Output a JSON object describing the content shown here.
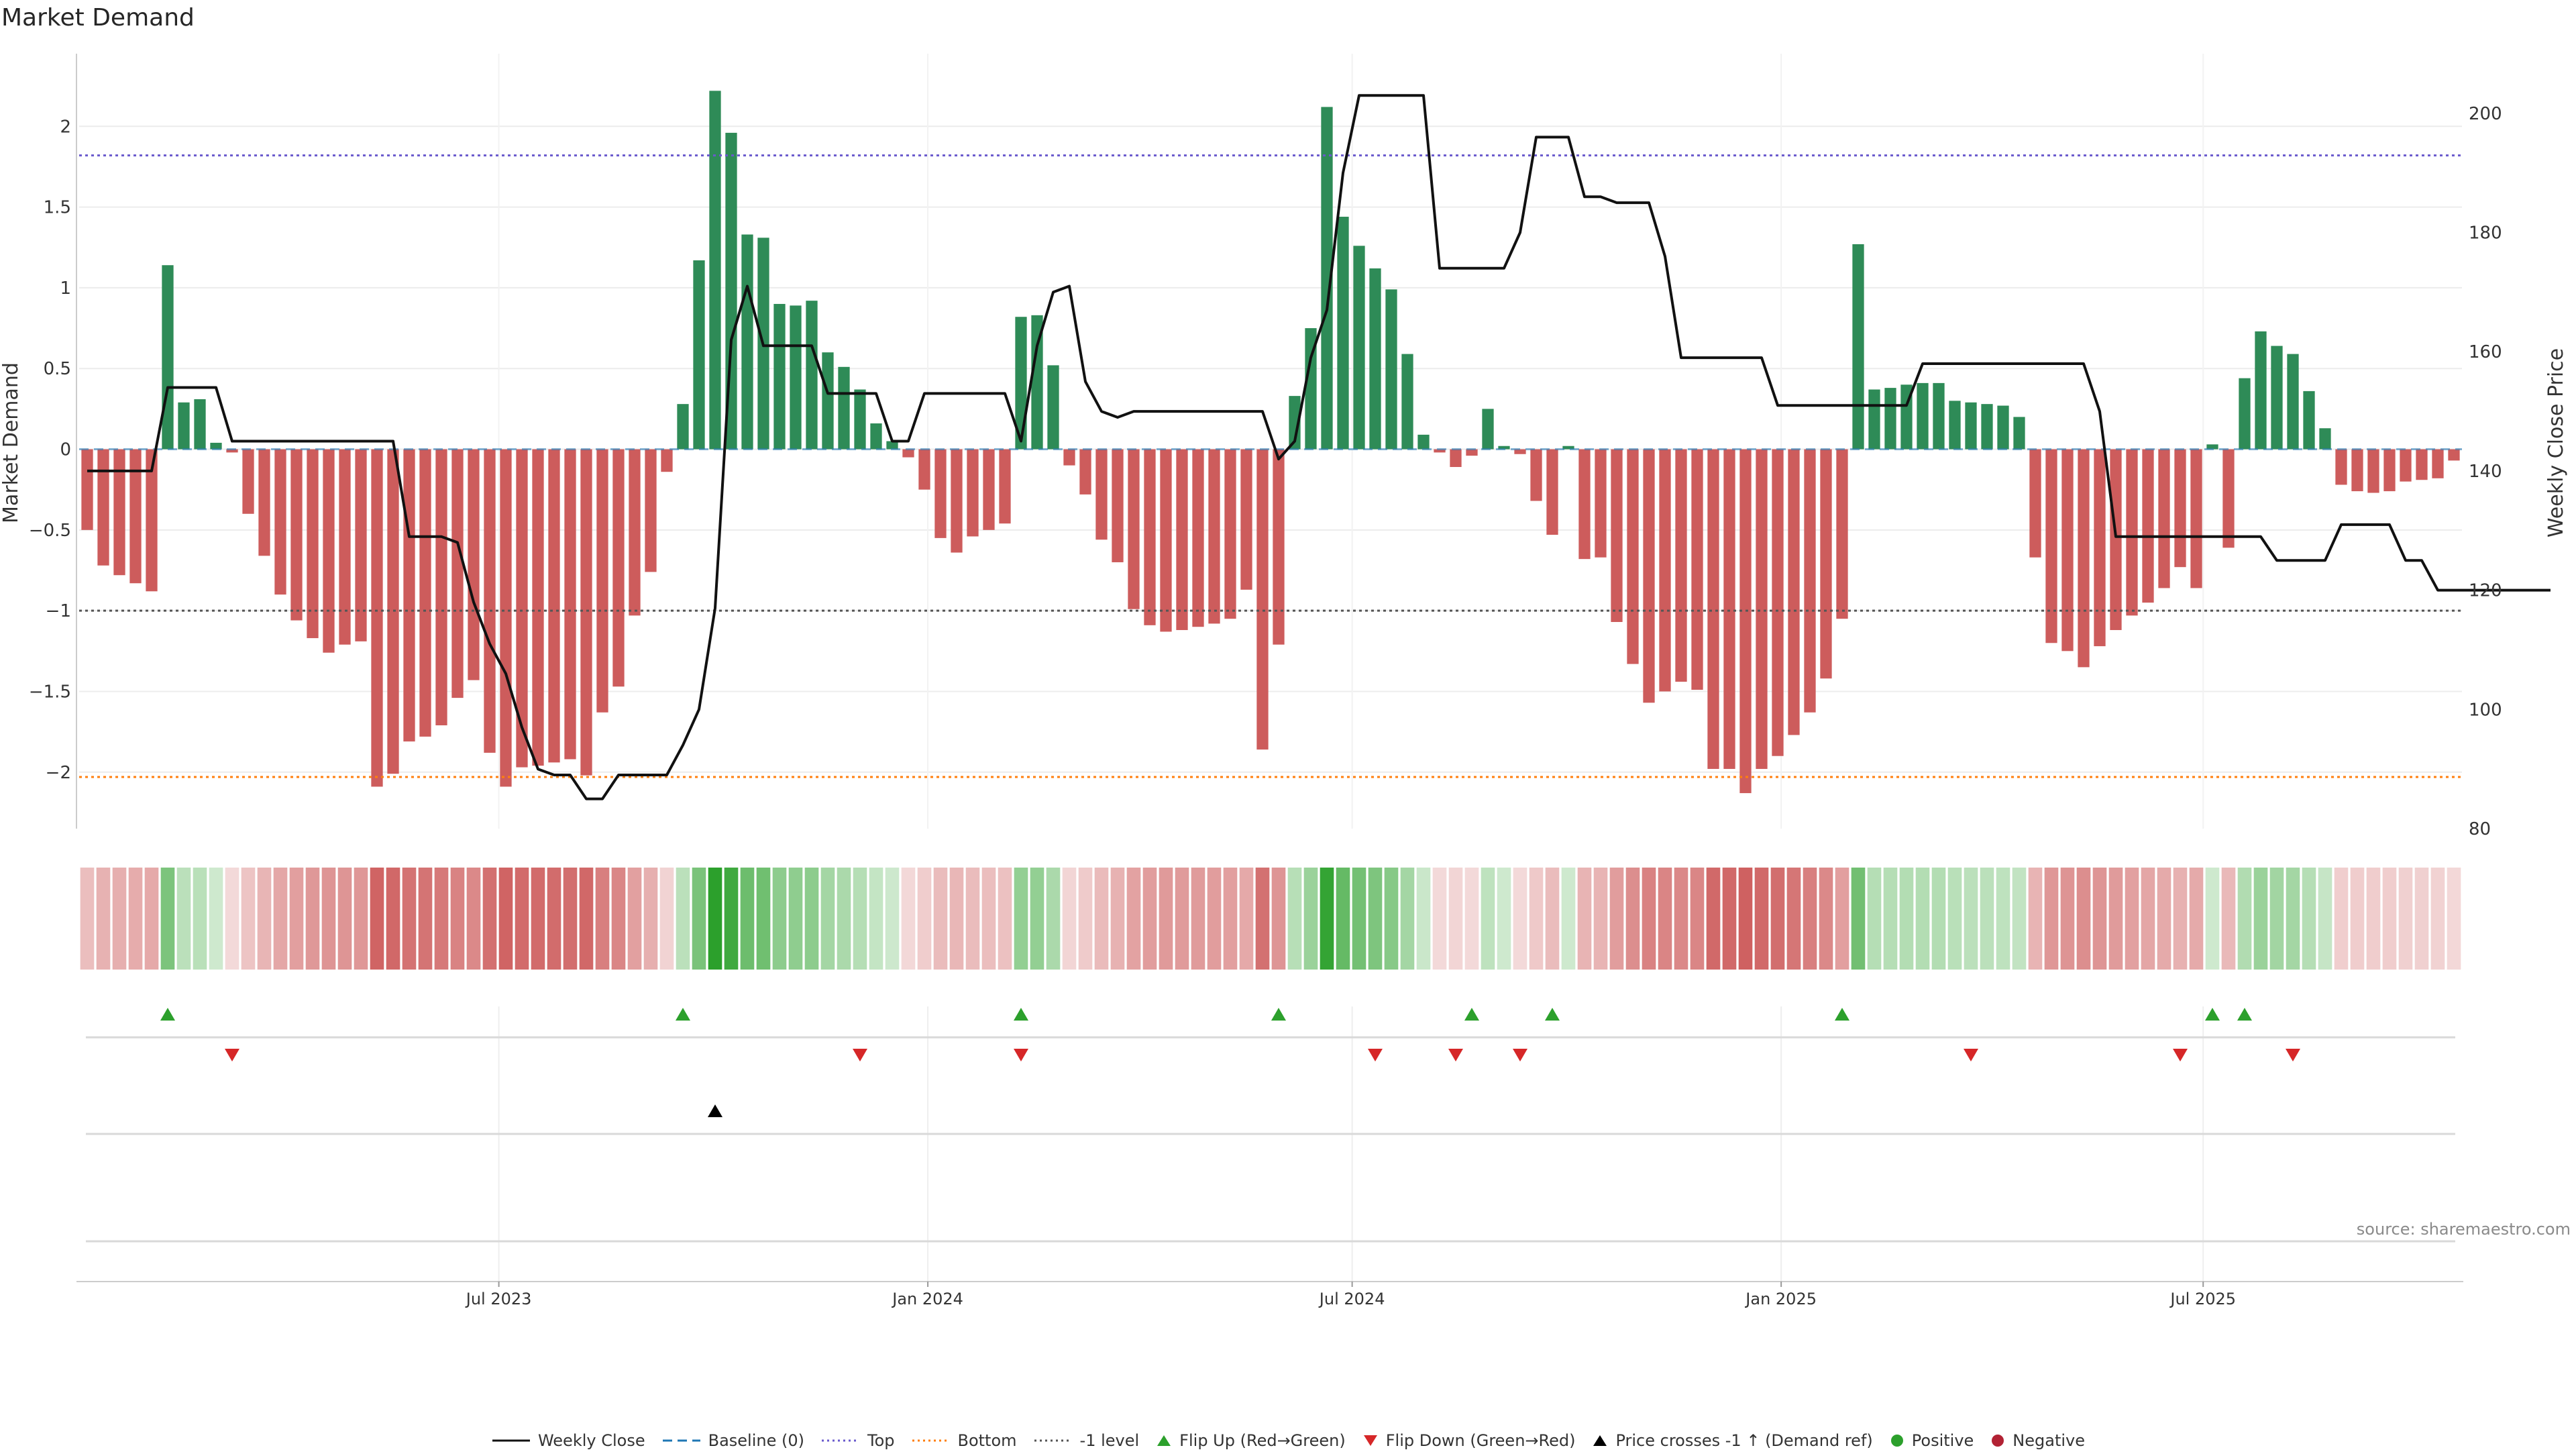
{
  "chart_data": {
    "type": "bar",
    "title": "Market Demand",
    "ylabel": "Market Demand",
    "ylabel_right": "Weekly Close Price",
    "ylim": [
      -2.35,
      2.45
    ],
    "yticks": [
      -2,
      -1.5,
      -1,
      -0.5,
      0,
      0.5,
      1,
      1.5,
      2
    ],
    "ylim_right": [
      80,
      210
    ],
    "yticks_right": [
      80,
      100,
      120,
      140,
      160,
      180,
      200
    ],
    "x_start": "2023-01-02",
    "x_end": "2025-10-20",
    "x_ticks": [
      {
        "date": "2023-07-01",
        "label": "Jul 2023"
      },
      {
        "date": "2024-01-01",
        "label": "Jan 2024"
      },
      {
        "date": "2024-07-01",
        "label": "Jul 2024"
      },
      {
        "date": "2025-01-01",
        "label": "Jan 2025"
      },
      {
        "date": "2025-07-01",
        "label": "Jul 2025"
      }
    ],
    "reference_lines": [
      {
        "name": "Top",
        "value": 1.82,
        "color": "#6a5acd"
      },
      {
        "name": "Bottom",
        "value": -2.03,
        "color": "#ff7f0e"
      },
      {
        "name": "-1 level",
        "value": -1.0,
        "color": "#555555"
      }
    ],
    "demand": [
      -0.5,
      -0.72,
      -0.78,
      -0.83,
      -0.88,
      1.14,
      0.29,
      0.31,
      0.04,
      -0.02,
      -0.4,
      -0.66,
      -0.9,
      -1.06,
      -1.17,
      -1.26,
      -1.21,
      -1.19,
      -2.09,
      -2.01,
      -1.81,
      -1.78,
      -1.71,
      -1.54,
      -1.43,
      -1.88,
      -2.09,
      -1.97,
      -1.96,
      -1.94,
      -1.92,
      -2.02,
      -1.63,
      -1.47,
      -1.03,
      -0.76,
      -0.14,
      0.28,
      1.17,
      2.22,
      1.96,
      1.33,
      1.31,
      0.9,
      0.89,
      0.92,
      0.6,
      0.51,
      0.37,
      0.16,
      0.05,
      -0.05,
      -0.25,
      -0.55,
      -0.64,
      -0.54,
      -0.5,
      -0.46,
      0.82,
      0.83,
      0.52,
      -0.1,
      -0.28,
      -0.56,
      -0.7,
      -0.99,
      -1.09,
      -1.13,
      -1.12,
      -1.1,
      -1.08,
      -1.05,
      -0.87,
      -1.86,
      -1.21,
      0.33,
      0.75,
      2.12,
      1.44,
      1.26,
      1.12,
      0.99,
      0.59,
      0.09,
      -0.02,
      -0.11,
      -0.04,
      0.25,
      0.02,
      -0.03,
      -0.32,
      -0.53,
      0.02,
      -0.68,
      -0.67,
      -1.07,
      -1.33,
      -1.57,
      -1.5,
      -1.44,
      -1.49,
      -1.98,
      -1.98,
      -2.13,
      -1.98,
      -1.9,
      -1.77,
      -1.63,
      -1.42,
      -1.05,
      1.27,
      0.37,
      0.38,
      0.4,
      0.41,
      0.41,
      0.3,
      0.29,
      0.28,
      0.27,
      0.2,
      -0.67,
      -1.2,
      -1.25,
      -1.35,
      -1.22,
      -1.12,
      -1.03,
      -0.95,
      -0.86,
      -0.73,
      -0.86,
      0.03,
      -0.61,
      0.44,
      0.73,
      0.64,
      0.59,
      0.36,
      0.13,
      -0.22,
      -0.26,
      -0.27,
      -0.26,
      -0.2,
      -0.19,
      -0.18,
      -0.07
    ],
    "close": [
      140,
      140,
      140,
      140,
      140,
      154,
      154,
      154,
      154,
      145,
      145,
      145,
      145,
      145,
      145,
      145,
      145,
      145,
      145,
      145,
      129,
      129,
      129,
      128,
      118,
      111,
      106,
      97,
      90,
      89,
      89,
      85,
      85,
      89,
      89,
      89,
      89,
      94,
      100,
      117,
      162,
      171,
      161,
      161,
      161,
      161,
      153,
      153,
      153,
      153,
      145,
      145,
      153,
      153,
      153,
      153,
      153,
      153,
      145,
      161,
      170,
      171,
      155,
      150,
      149,
      150,
      150,
      150,
      150,
      150,
      150,
      150,
      150,
      150,
      142,
      145,
      159,
      167,
      190,
      203,
      203,
      203,
      203,
      203,
      174,
      174,
      174,
      174,
      174,
      180,
      196,
      196,
      196,
      186,
      186,
      185,
      185,
      185,
      176,
      159,
      159,
      159,
      159,
      159,
      159,
      151,
      151,
      151,
      151,
      151,
      151,
      151,
      151,
      151,
      158,
      158,
      158,
      158,
      158,
      158,
      158,
      158,
      158,
      158,
      158,
      150,
      129,
      129,
      129,
      129,
      129,
      129,
      129,
      129,
      129,
      129,
      125,
      125,
      125,
      125,
      131,
      131,
      131,
      131,
      125,
      125,
      120,
      120,
      120,
      120,
      120,
      120,
      120,
      120
    ],
    "flip_up": [
      5,
      37,
      58,
      74,
      86,
      91,
      109,
      132,
      134
    ],
    "flip_down": [
      9,
      48,
      58,
      80,
      85,
      89,
      117,
      130,
      137
    ],
    "price_cross": [
      39
    ],
    "baseline_row_marks": [],
    "legend": [
      "Weekly Close",
      "Baseline (0)",
      "Top",
      "Bottom",
      "-1 level",
      "Flip Up (Red→Green)",
      "Flip Down (Green→Red)",
      "Price crosses -1 ↑ (Demand ref)",
      "Positive",
      "Negative"
    ]
  },
  "colors": {
    "positive": "#2e8b57",
    "negative": "#cd5c5c",
    "flip_up": "#2ca02c",
    "flip_down": "#d62728",
    "price": "#111111",
    "top": "#6a5acd",
    "bottom": "#ff7f0e",
    "minus_one": "#555555",
    "baseline": "#1f77b4",
    "grid": "#ececec",
    "axis": "#cccccc",
    "pos_dot": "#2ca02c",
    "neg_dot": "#b22234"
  },
  "source": "source: sharemaestro.com"
}
